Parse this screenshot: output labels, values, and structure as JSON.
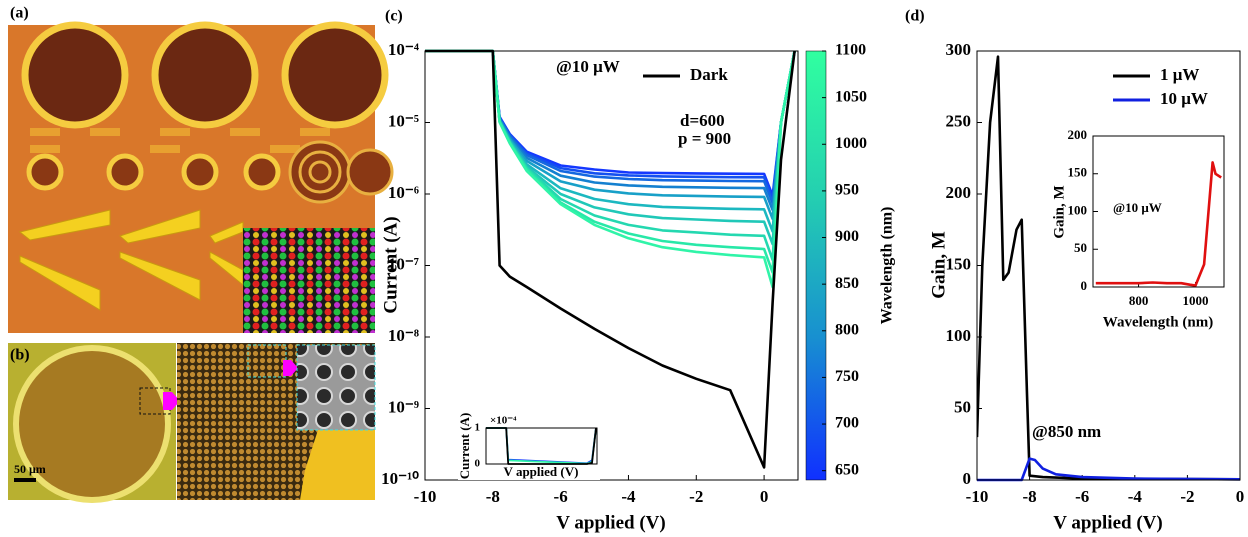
{
  "panels": {
    "a": "(a)",
    "b": "(b)",
    "b_scale": "50 μm"
  },
  "chart_data": [
    {
      "type": "line",
      "panel_label": "(c)",
      "x_label": "V applied (V)",
      "y_label": "Current (A)",
      "log_y": true,
      "xlim": [
        -10,
        1
      ],
      "xticks": [
        -10,
        -8,
        -6,
        -4,
        -2,
        0
      ],
      "ylim": [
        1e-10,
        0.0001
      ],
      "yticks": [
        {
          "value": 1e-10,
          "label": "10⁻¹⁰"
        },
        {
          "value": 1e-09,
          "label": "10⁻⁹"
        },
        {
          "value": 1e-08,
          "label": "10⁻⁸"
        },
        {
          "value": 1e-07,
          "label": "10⁻⁷"
        },
        {
          "value": 1e-06,
          "label": "10⁻⁶"
        },
        {
          "value": 1e-05,
          "label": "10⁻⁵"
        },
        {
          "value": 0.0001,
          "label": "10⁻⁴"
        }
      ],
      "annotations": [
        "@10 μW",
        "d=600",
        "p = 900"
      ],
      "x": [
        -10,
        -8,
        -7.8,
        -7.5,
        -7,
        -6,
        -5,
        -4,
        -3,
        -2,
        -1,
        0,
        0.25,
        0.5,
        0.9
      ],
      "series": [
        {
          "color": "#1438ff",
          "values": [
            0.0001,
            0.0001,
            1.2e-05,
            6.9e-06,
            3.9e-06,
            2.5e-06,
            2.2e-06,
            2e-06,
            1.96e-06,
            1.94e-06,
            1.92e-06,
            1.91e-06,
            9.5e-07,
            1e-05,
            0.0001
          ]
        },
        {
          "color": "#1450f0",
          "values": [
            0.0001,
            0.0001,
            1.17e-05,
            6.7e-06,
            3.7e-06,
            2.3e-06,
            1.95e-06,
            1.82e-06,
            1.76e-06,
            1.74e-06,
            1.72e-06,
            1.71e-06,
            8.5e-07,
            1e-05,
            0.0001
          ]
        },
        {
          "color": "#1468e0",
          "values": [
            0.0001,
            0.0001,
            1.15e-05,
            6.5e-06,
            3.5e-06,
            2.1e-06,
            1.75e-06,
            1.62e-06,
            1.56e-06,
            1.54e-06,
            1.52e-06,
            1.51e-06,
            7.5e-07,
            1e-05,
            0.0001
          ]
        },
        {
          "color": "#1480d0",
          "values": [
            0.0001,
            0.0001,
            1.12e-05,
            6.2e-06,
            3.2e-06,
            1.8e-06,
            1.45e-06,
            1.32e-06,
            1.26e-06,
            1.24e-06,
            1.22e-06,
            1.21e-06,
            6e-07,
            1e-05,
            0.0001
          ]
        },
        {
          "color": "#18a0c8",
          "values": [
            0.0001,
            0.0001,
            1.09e-05,
            5.9e-06,
            2.9e-06,
            1.5e-06,
            1.15e-06,
            1.02e-06,
            9.6e-07,
            9.4e-07,
            9.2e-07,
            9.1e-07,
            4.5e-07,
            1e-05,
            0.0001
          ]
        },
        {
          "color": "#1cb8c0",
          "values": [
            0.0001,
            0.0001,
            1.06e-05,
            5.6e-06,
            2.6e-06,
            1.2e-06,
            8.5e-07,
            7.2e-07,
            6.6e-07,
            6.4e-07,
            6.2e-07,
            6.1e-07,
            3e-07,
            1e-05,
            0.0001
          ]
        },
        {
          "color": "#20c8b8",
          "values": [
            0.0001,
            0.0001,
            1.04e-05,
            5.4e-06,
            2.4e-06,
            1e-06,
            6.5e-07,
            5.2e-07,
            4.6e-07,
            4.4e-07,
            4.2e-07,
            4.1e-07,
            2e-07,
            1e-05,
            0.0001
          ]
        },
        {
          "color": "#24d8b0",
          "values": [
            0.0001,
            0.0001,
            1.03e-05,
            5.3e-06,
            2.3e-06,
            8.5e-07,
            5e-07,
            3.7e-07,
            3.1e-07,
            2.9e-07,
            2.7e-07,
            2.6e-07,
            1.2e-07,
            1e-05,
            0.0001
          ]
        },
        {
          "color": "#28e8a8",
          "values": [
            0.0001,
            0.0001,
            1.02e-05,
            5.2e-06,
            2.2e-06,
            7.6e-07,
            4.1e-07,
            2.8e-07,
            2.2e-07,
            1.95e-07,
            1.8e-07,
            1.7e-07,
            8e-08,
            1e-05,
            0.0001
          ]
        },
        {
          "color": "#30f4a8",
          "values": [
            0.0001,
            0.0001,
            1.01e-05,
            5.1e-06,
            2.1e-06,
            7.2e-07,
            3.7e-07,
            2.4e-07,
            1.8e-07,
            1.55e-07,
            1.4e-07,
            1.3e-07,
            5e-08,
            1e-05,
            0.0001
          ]
        },
        {
          "name": "Dark",
          "color": "#000000",
          "values": [
            0.0001,
            0.0001,
            1e-07,
            7e-08,
            5e-08,
            2.5e-08,
            1.3e-08,
            7e-09,
            4e-09,
            2.6e-09,
            1.8e-09,
            1.5e-10,
            3e-08,
            3e-06,
            0.0001
          ]
        }
      ],
      "colorbar": {
        "label": "Wavelength (nm)",
        "lim": [
          640,
          1100
        ],
        "ticks": [
          650,
          700,
          750,
          800,
          850,
          900,
          950,
          1000,
          1050,
          1100
        ],
        "colors": [
          "#1030ff",
          "#1890d0",
          "#24d0b0",
          "#30ffa0"
        ]
      },
      "inset": {
        "type": "line",
        "x_label": "V applied (V)",
        "y_label": "Current (A)",
        "y_multiplier": "×10⁻⁴",
        "xlim": [
          -10,
          1
        ],
        "ylim": [
          0,
          1
        ],
        "yticks": [
          0,
          1
        ],
        "x": [
          -10,
          -8,
          -7.8,
          0,
          0.5,
          0.9
        ],
        "series": [
          {
            "color": "#1438ff",
            "values": [
              1,
              1,
              0.12,
              0.02,
              0.1,
              1
            ]
          },
          {
            "color": "#30f4a8",
            "values": [
              1,
              1,
              0.1,
              0.01,
              0.06,
              1
            ]
          },
          {
            "color": "#000000",
            "values": [
              1,
              1,
              0,
              0,
              0.03,
              1
            ]
          }
        ]
      }
    },
    {
      "type": "line",
      "panel_label": "(d)",
      "x_label": "V applied (V)",
      "y_label": "Gain, M",
      "xlim": [
        -10,
        0
      ],
      "xticks": [
        -10,
        -8,
        -6,
        -4,
        -2,
        0
      ],
      "ylim": [
        0,
        300
      ],
      "yticks": [
        0,
        50,
        100,
        150,
        200,
        250,
        300
      ],
      "annotations": [
        "@850 nm"
      ],
      "series": [
        {
          "name": "1 μW",
          "color": "#000000",
          "x": [
            -10,
            -9.8,
            -9.5,
            -9.2,
            -9.0,
            -8.8,
            -8.5,
            -8.3,
            -8.1,
            -8.0,
            -7.5,
            -6,
            0
          ],
          "values": [
            30,
            150,
            250,
            296,
            140,
            145,
            175,
            182,
            60,
            3,
            2,
            1,
            0.5
          ]
        },
        {
          "name": "10 μW",
          "color": "#1020e0",
          "x": [
            -10,
            -8.3,
            -8.0,
            -7.8,
            -7.5,
            -7,
            -6,
            -4,
            0
          ],
          "values": [
            0,
            0,
            15,
            14,
            8,
            4,
            2,
            1,
            0.5
          ]
        }
      ],
      "inset": {
        "type": "line",
        "x_label": "Wavelength (nm)",
        "y_label": "Gain, M",
        "annotations": [
          "@10 μW"
        ],
        "xlim": [
          640,
          1100
        ],
        "xticks": [
          800,
          1000
        ],
        "ylim": [
          0,
          200
        ],
        "yticks": [
          0,
          50,
          100,
          150,
          200
        ],
        "series": [
          {
            "color": "#e01010",
            "x": [
              650,
              700,
              800,
              850,
              900,
              950,
              980,
              1000,
              1030,
              1060,
              1070,
              1090
            ],
            "values": [
              5,
              5,
              5,
              6,
              5,
              5,
              3,
              2,
              30,
              165,
              150,
              145
            ]
          }
        ]
      }
    }
  ]
}
